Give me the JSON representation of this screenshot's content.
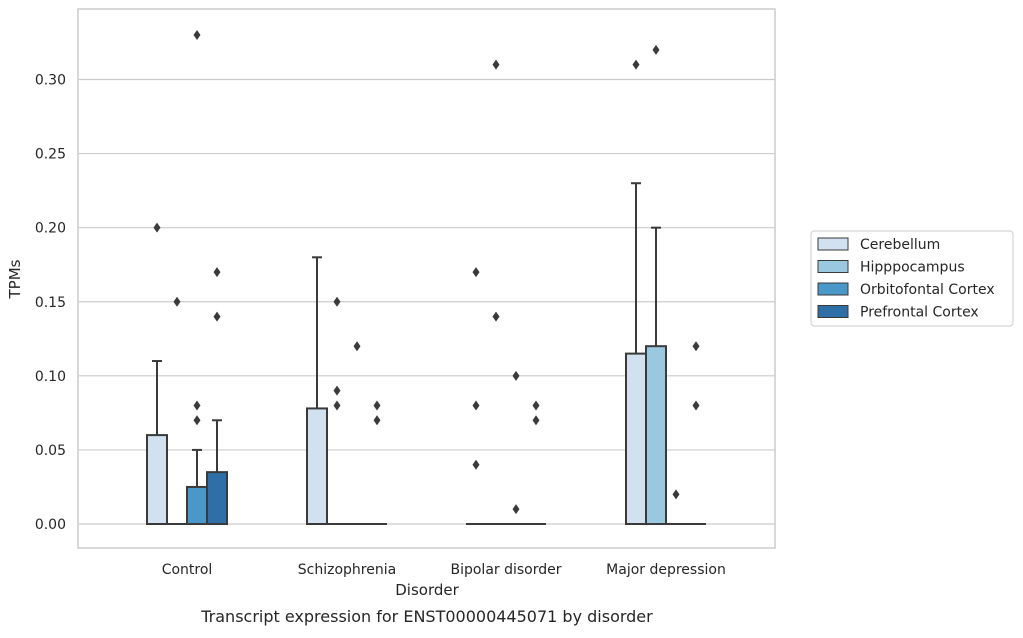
{
  "chart_data": {
    "type": "boxplot",
    "title": "",
    "caption": "Transcript expression for ENST00000445071 by disorder",
    "xlabel": "Disorder",
    "ylabel": "TPMs",
    "ylim": [
      -0.016,
      0.347
    ],
    "yticks": [
      0.0,
      0.05,
      0.1,
      0.15,
      0.2,
      0.25,
      0.3
    ],
    "ytick_labels": [
      "0.00",
      "0.05",
      "0.10",
      "0.15",
      "0.20",
      "0.25",
      "0.30"
    ],
    "grid": "horizontal",
    "legend_position": "right",
    "categories": [
      "Control",
      "Schizophrenia",
      "Bipolar disorder",
      "Major depression"
    ],
    "series": [
      {
        "name": "Cerebellum",
        "color": "#d2e1f0",
        "boxes": [
          {
            "q1": 0.0,
            "median": 0.0,
            "q3": 0.06,
            "whisker_low": 0.0,
            "whisker_high": 0.11,
            "outliers": [
              0.2
            ]
          },
          {
            "q1": 0.0,
            "median": 0.0,
            "q3": 0.078,
            "whisker_low": 0.0,
            "whisker_high": 0.18,
            "outliers": []
          },
          {
            "q1": 0.0,
            "median": 0.0,
            "q3": 0.0,
            "whisker_low": 0.0,
            "whisker_high": 0.0,
            "outliers": [
              0.04,
              0.08,
              0.17
            ]
          },
          {
            "q1": 0.0,
            "median": 0.0,
            "q3": 0.115,
            "whisker_low": 0.0,
            "whisker_high": 0.23,
            "outliers": [
              0.31
            ]
          }
        ]
      },
      {
        "name": "Hipppocampus",
        "color": "#9ac8e0",
        "boxes": [
          {
            "q1": 0.0,
            "median": 0.0,
            "q3": 0.0,
            "whisker_low": 0.0,
            "whisker_high": 0.0,
            "outliers": [
              0.15
            ]
          },
          {
            "q1": 0.0,
            "median": 0.0,
            "q3": 0.0,
            "whisker_low": 0.0,
            "whisker_high": 0.0,
            "outliers": [
              0.08,
              0.09,
              0.15
            ]
          },
          {
            "q1": 0.0,
            "median": 0.0,
            "q3": 0.0,
            "whisker_low": 0.0,
            "whisker_high": 0.0,
            "outliers": [
              0.14,
              0.31
            ]
          },
          {
            "q1": 0.0,
            "median": 0.0,
            "q3": 0.12,
            "whisker_low": 0.0,
            "whisker_high": 0.2,
            "outliers": [
              0.32
            ]
          }
        ]
      },
      {
        "name": "Orbitofontal Cortex",
        "color": "#4a98c9",
        "boxes": [
          {
            "q1": 0.0,
            "median": 0.0,
            "q3": 0.025,
            "whisker_low": 0.0,
            "whisker_high": 0.05,
            "outliers": [
              0.07,
              0.08,
              0.33
            ]
          },
          {
            "q1": 0.0,
            "median": 0.0,
            "q3": 0.0,
            "whisker_low": 0.0,
            "whisker_high": 0.0,
            "outliers": [
              0.12
            ]
          },
          {
            "q1": 0.0,
            "median": 0.0,
            "q3": 0.0,
            "whisker_low": 0.0,
            "whisker_high": 0.0,
            "outliers": [
              0.01,
              0.1
            ]
          },
          {
            "q1": 0.0,
            "median": 0.0,
            "q3": 0.0,
            "whisker_low": 0.0,
            "whisker_high": 0.0,
            "outliers": [
              0.02
            ]
          }
        ]
      },
      {
        "name": "Prefrontal Cortex",
        "color": "#2f6fa8",
        "boxes": [
          {
            "q1": 0.0,
            "median": 0.0,
            "q3": 0.035,
            "whisker_low": 0.0,
            "whisker_high": 0.07,
            "outliers": [
              0.14,
              0.17
            ]
          },
          {
            "q1": 0.0,
            "median": 0.0,
            "q3": 0.0,
            "whisker_low": 0.0,
            "whisker_high": 0.0,
            "outliers": [
              0.07,
              0.08
            ]
          },
          {
            "q1": 0.0,
            "median": 0.0,
            "q3": 0.0,
            "whisker_low": 0.0,
            "whisker_high": 0.0,
            "outliers": [
              0.07,
              0.08
            ]
          },
          {
            "q1": 0.0,
            "median": 0.0,
            "q3": 0.0,
            "whisker_low": 0.0,
            "whisker_high": 0.0,
            "outliers": [
              0.08,
              0.12
            ]
          }
        ]
      }
    ]
  }
}
